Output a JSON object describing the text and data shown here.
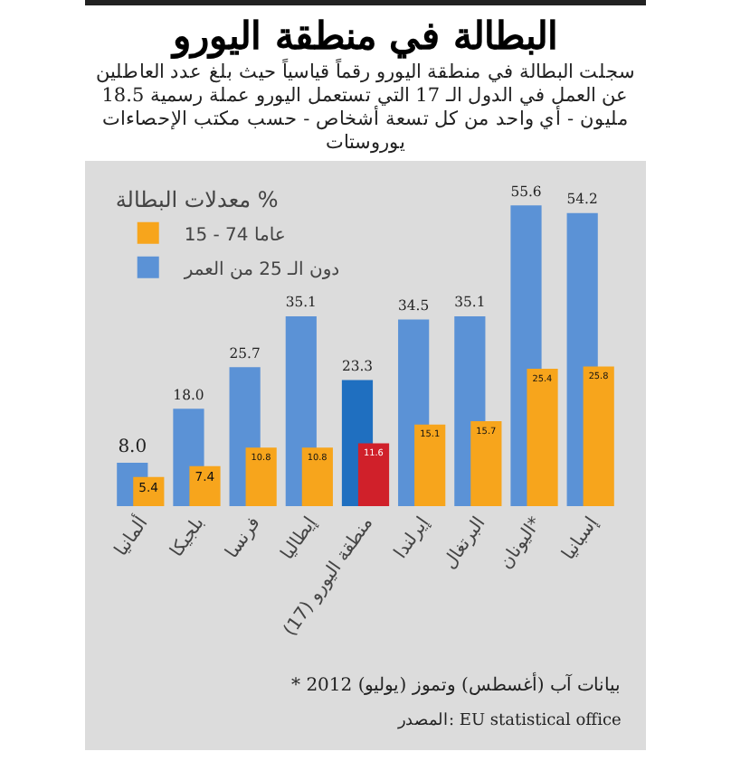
{
  "chart_data": {
    "type": "bar",
    "title": "البطالة في منطقة اليورو",
    "subtitle": "سجلت البطالة في منطقة اليورو رقماً قياسياً حيث بلغ عدد العاطلين عن العمل في الدول الـ 17 التي تستعمل اليورو عملة رسمية 18.5 مليون - أي واحد من كل تسعة أشخاص - حسب مكتب الإحصاءات يوروستات",
    "legend_title": "معدلات البطالة %",
    "categories": [
      "ألمانيا",
      "بلجيكا",
      "فرنسا",
      "إيطاليا",
      "منطقة اليورو (17)",
      "إيرلندا",
      "البرتغال",
      "اليونان*",
      "إسبانيا"
    ],
    "series": [
      {
        "name": "دون الـ 25 من العمر",
        "color": "#5b92d6",
        "colors": [
          "#5b92d6",
          "#5b92d6",
          "#5b92d6",
          "#5b92d6",
          "#1f6fc0",
          "#5b92d6",
          "#5b92d6",
          "#5b92d6",
          "#5b92d6"
        ],
        "values": [
          8.0,
          18.0,
          25.7,
          35.1,
          23.3,
          34.5,
          35.1,
          55.6,
          54.2
        ],
        "value_labels": [
          "8.0",
          "18.0",
          "25.7",
          "35.1",
          "23.3",
          "34.5",
          "35.1",
          "55.6",
          "54.2"
        ]
      },
      {
        "name": "15 - 74 عاما",
        "color": "#f7a51c",
        "colors": [
          "#f7a51c",
          "#f7a51c",
          "#f7a51c",
          "#f7a51c",
          "#d0202a",
          "#f7a51c",
          "#f7a51c",
          "#f7a51c",
          "#f7a51c"
        ],
        "values": [
          5.4,
          7.4,
          10.8,
          10.8,
          11.6,
          15.1,
          15.7,
          25.4,
          25.8
        ],
        "value_labels": [
          "5.4",
          "7.4",
          "10.8",
          "10.8",
          "11.6",
          "15.1",
          "15.7",
          "25.4",
          "25.8"
        ]
      }
    ],
    "legend": "top left",
    "annotations": [
      "* بيانات آب (أغسطس) وتموز (يوليو) 2012",
      "المصدر: EU statistical office"
    ]
  }
}
